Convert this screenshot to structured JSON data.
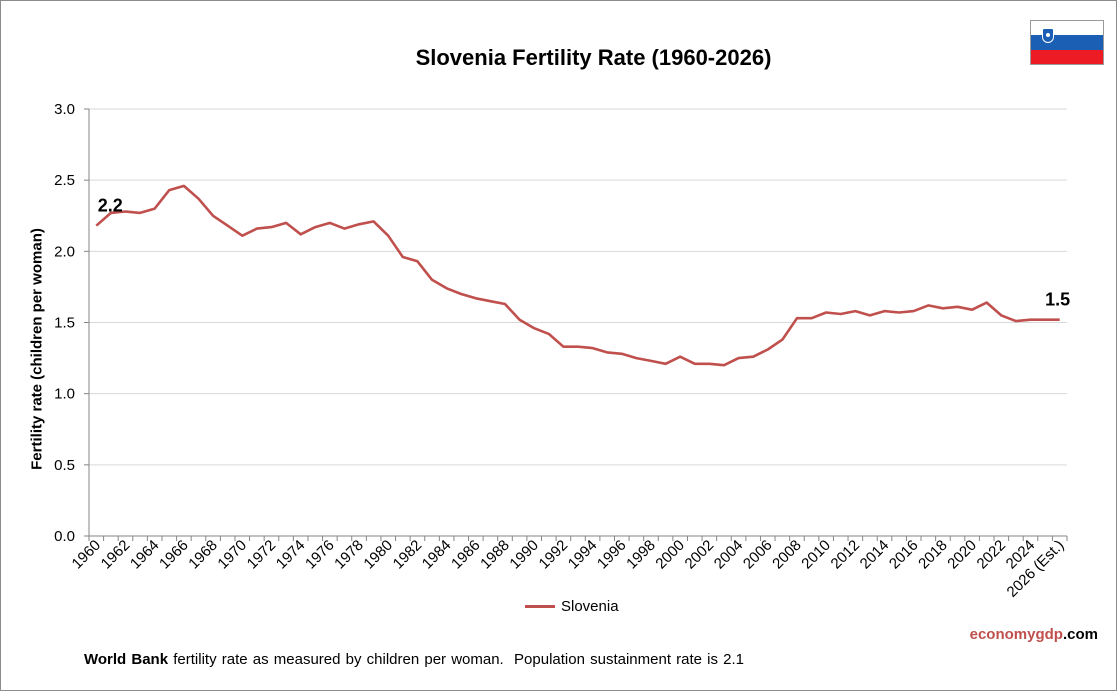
{
  "chart_data": {
    "type": "line",
    "title": "Slovenia Fertility Rate (1960-2026)",
    "ylabel": "Fertility rate (children per woman)",
    "xlabel": "",
    "ylim": [
      0,
      3
    ],
    "yticks": [
      "0.0",
      "0.5",
      "1.0",
      "1.5",
      "2.0",
      "2.5",
      "3.0"
    ],
    "grid": true,
    "legend_position": "bottom",
    "x": [
      "1960",
      "1961",
      "1962",
      "1963",
      "1964",
      "1965",
      "1966",
      "1967",
      "1968",
      "1969",
      "1970",
      "1971",
      "1972",
      "1973",
      "1974",
      "1975",
      "1976",
      "1977",
      "1978",
      "1979",
      "1980",
      "1981",
      "1982",
      "1983",
      "1984",
      "1985",
      "1986",
      "1987",
      "1988",
      "1989",
      "1990",
      "1991",
      "1992",
      "1993",
      "1994",
      "1995",
      "1996",
      "1997",
      "1998",
      "1999",
      "2000",
      "2001",
      "2002",
      "2003",
      "2004",
      "2005",
      "2006",
      "2007",
      "2008",
      "2009",
      "2010",
      "2011",
      "2012",
      "2013",
      "2014",
      "2015",
      "2016",
      "2017",
      "2018",
      "2019",
      "2020",
      "2021",
      "2022",
      "2023",
      "2024",
      "2025",
      "2026 (Est.)"
    ],
    "x_tick_labels": [
      "1960",
      "1962",
      "1964",
      "1966",
      "1968",
      "1970",
      "1972",
      "1974",
      "1976",
      "1978",
      "1980",
      "1982",
      "1984",
      "1986",
      "1988",
      "1990",
      "1992",
      "1994",
      "1996",
      "1998",
      "2000",
      "2002",
      "2004",
      "2006",
      "2008",
      "2010",
      "2012",
      "2014",
      "2016",
      "2018",
      "2020",
      "2022",
      "2024",
      "2026 (Est.)"
    ],
    "series": [
      {
        "name": "Slovenia",
        "color": "#c0504d",
        "values": [
          2.18,
          2.27,
          2.28,
          2.27,
          2.3,
          2.43,
          2.46,
          2.37,
          2.25,
          2.18,
          2.11,
          2.16,
          2.17,
          2.2,
          2.12,
          2.17,
          2.2,
          2.16,
          2.19,
          2.21,
          2.11,
          1.96,
          1.93,
          1.8,
          1.74,
          1.7,
          1.67,
          1.65,
          1.63,
          1.52,
          1.46,
          1.42,
          1.33,
          1.33,
          1.32,
          1.29,
          1.28,
          1.25,
          1.23,
          1.21,
          1.26,
          1.21,
          1.21,
          1.2,
          1.25,
          1.26,
          1.31,
          1.38,
          1.53,
          1.53,
          1.57,
          1.56,
          1.58,
          1.55,
          1.58,
          1.57,
          1.58,
          1.62,
          1.6,
          1.61,
          1.59,
          1.64,
          1.55,
          1.51,
          1.52,
          1.52,
          1.52
        ]
      }
    ],
    "annotations": [
      {
        "label": "2.2",
        "x": "1960",
        "y": 2.18
      },
      {
        "label": "1.5",
        "x": "2026 (Est.)",
        "y": 1.52
      }
    ]
  },
  "branding": {
    "part1": "economy",
    "part2": "gdp",
    "part3": ".com"
  },
  "footnote": {
    "bold": "World Bank",
    "text": " fertility rate as measured by children per woman.  Population sustainment rate is 2.1"
  },
  "flag": {
    "name": "slovenia-flag-icon",
    "colors": [
      "#ffffff",
      "#1b5fb4",
      "#ed1c24"
    ]
  }
}
